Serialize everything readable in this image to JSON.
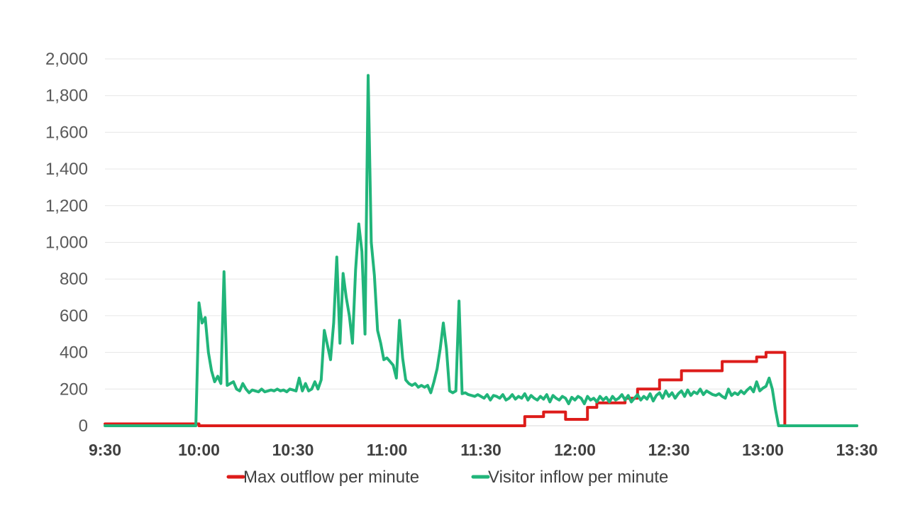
{
  "chart_data": {
    "type": "line",
    "title": "",
    "xlabel": "",
    "ylabel": "",
    "x_unit": "minutes",
    "x_range": [
      "9:30",
      "13:30"
    ],
    "y_range": [
      0,
      2000
    ],
    "grid": "horizontal",
    "legend_position": "bottom",
    "y_ticks": [
      "0",
      "200",
      "400",
      "600",
      "800",
      "1,000",
      "1,200",
      "1,400",
      "1,600",
      "1,800",
      "2,000"
    ],
    "y_tick_values": [
      0,
      200,
      400,
      600,
      800,
      1000,
      1200,
      1400,
      1600,
      1800,
      2000
    ],
    "x_ticks": [
      "9:30",
      "10:00",
      "10:30",
      "11:00",
      "11:30",
      "12:00",
      "12:30",
      "13:00",
      "13:30"
    ],
    "x_tick_values": [
      "9:30",
      "10:00",
      "10:30",
      "11:00",
      "11:30",
      "12:00",
      "12:30",
      "13:00",
      "13:30"
    ],
    "series": [
      {
        "name": "Max outflow per minute",
        "color": "#dd1c1a",
        "step": true,
        "points": [
          [
            "9:30",
            10
          ],
          [
            "9:59",
            10
          ],
          [
            "10:00",
            0
          ],
          [
            "11:43",
            0
          ],
          [
            "11:44",
            50
          ],
          [
            "11:50",
            75
          ],
          [
            "11:57",
            35
          ],
          [
            "12:04",
            100
          ],
          [
            "12:07",
            125
          ],
          [
            "12:16",
            150
          ],
          [
            "12:20",
            200
          ],
          [
            "12:27",
            250
          ],
          [
            "12:34",
            300
          ],
          [
            "12:47",
            350
          ],
          [
            "12:58",
            375
          ],
          [
            "13:01",
            400
          ],
          [
            "13:06",
            400
          ],
          [
            "13:07",
            0
          ],
          [
            "13:30",
            0
          ]
        ]
      },
      {
        "name": "Visitor inflow per minute",
        "color": "#21b57a",
        "step": false,
        "points": [
          [
            "9:30",
            0
          ],
          [
            "9:59",
            0
          ],
          [
            "10:00",
            670
          ],
          [
            "10:01",
            560
          ],
          [
            "10:02",
            590
          ],
          [
            "10:03",
            400
          ],
          [
            "10:04",
            300
          ],
          [
            "10:05",
            240
          ],
          [
            "10:06",
            270
          ],
          [
            "10:07",
            230
          ],
          [
            "10:08",
            840
          ],
          [
            "10:09",
            220
          ],
          [
            "10:10",
            230
          ],
          [
            "10:11",
            240
          ],
          [
            "10:12",
            200
          ],
          [
            "10:13",
            190
          ],
          [
            "10:14",
            230
          ],
          [
            "10:15",
            200
          ],
          [
            "10:16",
            180
          ],
          [
            "10:17",
            195
          ],
          [
            "10:18",
            190
          ],
          [
            "10:19",
            185
          ],
          [
            "10:20",
            200
          ],
          [
            "10:21",
            185
          ],
          [
            "10:22",
            190
          ],
          [
            "10:23",
            195
          ],
          [
            "10:24",
            190
          ],
          [
            "10:25",
            200
          ],
          [
            "10:26",
            190
          ],
          [
            "10:27",
            195
          ],
          [
            "10:28",
            185
          ],
          [
            "10:29",
            200
          ],
          [
            "10:30",
            195
          ],
          [
            "10:31",
            190
          ],
          [
            "10:32",
            260
          ],
          [
            "10:33",
            190
          ],
          [
            "10:34",
            230
          ],
          [
            "10:35",
            190
          ],
          [
            "10:36",
            200
          ],
          [
            "10:37",
            240
          ],
          [
            "10:38",
            200
          ],
          [
            "10:39",
            250
          ],
          [
            "10:40",
            520
          ],
          [
            "10:41",
            440
          ],
          [
            "10:42",
            360
          ],
          [
            "10:43",
            560
          ],
          [
            "10:44",
            920
          ],
          [
            "10:45",
            450
          ],
          [
            "10:46",
            830
          ],
          [
            "10:47",
            700
          ],
          [
            "10:48",
            600
          ],
          [
            "10:49",
            450
          ],
          [
            "10:50",
            850
          ],
          [
            "10:51",
            1100
          ],
          [
            "10:52",
            950
          ],
          [
            "10:53",
            500
          ],
          [
            "10:54",
            1910
          ],
          [
            "10:55",
            1000
          ],
          [
            "10:56",
            820
          ],
          [
            "10:57",
            520
          ],
          [
            "10:58",
            450
          ],
          [
            "10:59",
            360
          ],
          [
            "11:00",
            370
          ],
          [
            "11:01",
            350
          ],
          [
            "11:02",
            330
          ],
          [
            "11:03",
            260
          ],
          [
            "11:04",
            575
          ],
          [
            "11:05",
            370
          ],
          [
            "11:06",
            250
          ],
          [
            "11:07",
            230
          ],
          [
            "11:08",
            220
          ],
          [
            "11:09",
            230
          ],
          [
            "11:10",
            210
          ],
          [
            "11:11",
            220
          ],
          [
            "11:12",
            210
          ],
          [
            "11:13",
            220
          ],
          [
            "11:14",
            180
          ],
          [
            "11:15",
            240
          ],
          [
            "11:16",
            310
          ],
          [
            "11:17",
            420
          ],
          [
            "11:18",
            560
          ],
          [
            "11:19",
            420
          ],
          [
            "11:20",
            190
          ],
          [
            "11:21",
            180
          ],
          [
            "11:22",
            190
          ],
          [
            "11:23",
            680
          ],
          [
            "11:24",
            175
          ],
          [
            "11:25",
            180
          ],
          [
            "11:26",
            170
          ],
          [
            "11:27",
            165
          ],
          [
            "11:28",
            160
          ],
          [
            "11:29",
            170
          ],
          [
            "11:30",
            160
          ],
          [
            "11:31",
            150
          ],
          [
            "11:32",
            170
          ],
          [
            "11:33",
            140
          ],
          [
            "11:34",
            165
          ],
          [
            "11:35",
            160
          ],
          [
            "11:36",
            150
          ],
          [
            "11:37",
            170
          ],
          [
            "11:38",
            140
          ],
          [
            "11:39",
            150
          ],
          [
            "11:40",
            170
          ],
          [
            "11:41",
            145
          ],
          [
            "11:42",
            160
          ],
          [
            "11:43",
            150
          ],
          [
            "11:44",
            175
          ],
          [
            "11:45",
            140
          ],
          [
            "11:46",
            165
          ],
          [
            "11:47",
            150
          ],
          [
            "11:48",
            140
          ],
          [
            "11:49",
            160
          ],
          [
            "11:50",
            145
          ],
          [
            "11:51",
            170
          ],
          [
            "11:52",
            130
          ],
          [
            "11:53",
            165
          ],
          [
            "11:54",
            150
          ],
          [
            "11:55",
            140
          ],
          [
            "11:56",
            160
          ],
          [
            "11:57",
            150
          ],
          [
            "11:58",
            120
          ],
          [
            "11:59",
            155
          ],
          [
            "12:00",
            140
          ],
          [
            "12:01",
            160
          ],
          [
            "12:02",
            150
          ],
          [
            "12:03",
            120
          ],
          [
            "12:04",
            160
          ],
          [
            "12:05",
            140
          ],
          [
            "12:06",
            150
          ],
          [
            "12:07",
            130
          ],
          [
            "12:08",
            160
          ],
          [
            "12:09",
            140
          ],
          [
            "12:10",
            155
          ],
          [
            "12:11",
            130
          ],
          [
            "12:12",
            160
          ],
          [
            "12:13",
            140
          ],
          [
            "12:14",
            150
          ],
          [
            "12:15",
            170
          ],
          [
            "12:16",
            140
          ],
          [
            "12:17",
            165
          ],
          [
            "12:18",
            130
          ],
          [
            "12:19",
            150
          ],
          [
            "12:20",
            170
          ],
          [
            "12:21",
            140
          ],
          [
            "12:22",
            160
          ],
          [
            "12:23",
            145
          ],
          [
            "12:24",
            175
          ],
          [
            "12:25",
            135
          ],
          [
            "12:26",
            165
          ],
          [
            "12:27",
            180
          ],
          [
            "12:28",
            150
          ],
          [
            "12:29",
            190
          ],
          [
            "12:30",
            160
          ],
          [
            "12:31",
            180
          ],
          [
            "12:32",
            150
          ],
          [
            "12:33",
            175
          ],
          [
            "12:34",
            190
          ],
          [
            "12:35",
            160
          ],
          [
            "12:36",
            195
          ],
          [
            "12:37",
            165
          ],
          [
            "12:38",
            185
          ],
          [
            "12:39",
            175
          ],
          [
            "12:40",
            200
          ],
          [
            "12:41",
            170
          ],
          [
            "12:42",
            190
          ],
          [
            "12:43",
            180
          ],
          [
            "12:44",
            170
          ],
          [
            "12:45",
            165
          ],
          [
            "12:46",
            175
          ],
          [
            "12:47",
            160
          ],
          [
            "12:48",
            150
          ],
          [
            "12:49",
            200
          ],
          [
            "12:50",
            165
          ],
          [
            "12:51",
            180
          ],
          [
            "12:52",
            170
          ],
          [
            "12:53",
            190
          ],
          [
            "12:54",
            175
          ],
          [
            "12:55",
            195
          ],
          [
            "12:56",
            210
          ],
          [
            "12:57",
            185
          ],
          [
            "12:58",
            240
          ],
          [
            "12:59",
            190
          ],
          [
            "13:00",
            205
          ],
          [
            "13:01",
            215
          ],
          [
            "13:02",
            260
          ],
          [
            "13:03",
            200
          ],
          [
            "13:04",
            90
          ],
          [
            "13:05",
            0
          ],
          [
            "13:30",
            0
          ]
        ]
      }
    ]
  }
}
